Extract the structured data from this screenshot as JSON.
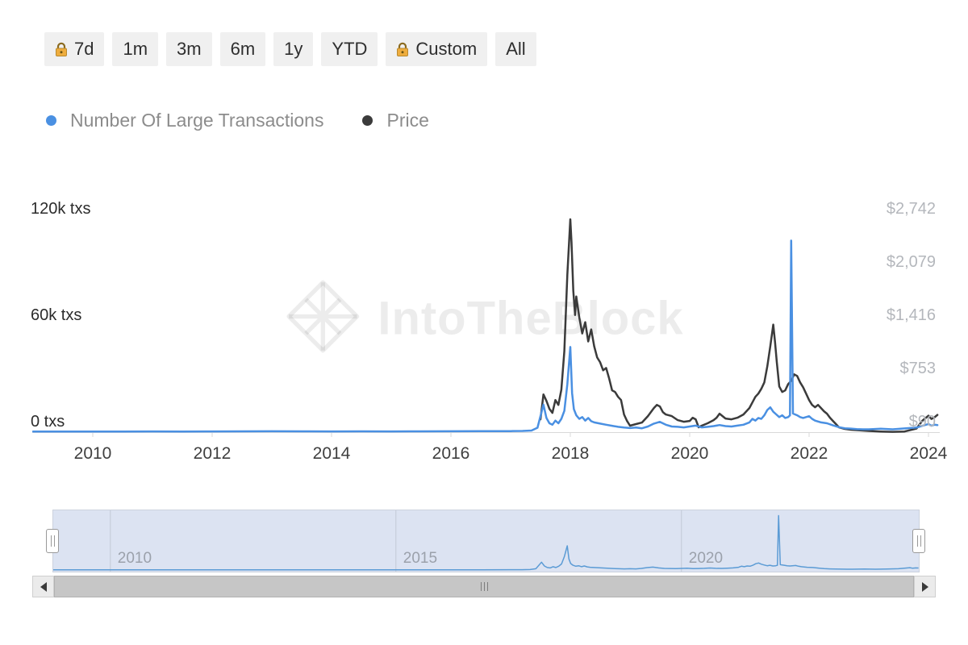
{
  "toolbar": {
    "buttons": [
      {
        "label": "7d",
        "locked": true
      },
      {
        "label": "1m",
        "locked": false
      },
      {
        "label": "3m",
        "locked": false
      },
      {
        "label": "6m",
        "locked": false
      },
      {
        "label": "1y",
        "locked": false
      },
      {
        "label": "YTD",
        "locked": false
      },
      {
        "label": "Custom",
        "locked": true
      },
      {
        "label": "All",
        "locked": false
      }
    ]
  },
  "watermark": {
    "text": "IntoTheBlock"
  },
  "chart_data": {
    "type": "line",
    "title": "",
    "x_axis": {
      "range": [
        2009,
        2024.15
      ],
      "ticks": [
        2010,
        2012,
        2014,
        2016,
        2018,
        2020,
        2022,
        2024
      ],
      "tick_labels": [
        "2010",
        "2012",
        "2014",
        "2016",
        "2018",
        "2020",
        "2022",
        "2024"
      ]
    },
    "y_axis_left": {
      "labels": [
        "120k txs",
        "60k txs",
        "0 txs"
      ],
      "values": [
        120000,
        60000,
        0
      ],
      "range": [
        0,
        120000
      ]
    },
    "y_axis_right": {
      "labels": [
        "$2,742",
        "$2,079",
        "$1,416",
        "$753",
        "$90"
      ],
      "values": [
        2742,
        2079,
        1416,
        753,
        90
      ],
      "range": [
        90,
        2742
      ]
    },
    "legend_position": "top-left",
    "grid": false,
    "series": [
      {
        "name": "Number Of Large Transactions",
        "color": "#4a90e2",
        "y_axis": "left",
        "points": [
          [
            2009.0,
            300
          ],
          [
            2009.5,
            300
          ],
          [
            2010.0,
            350
          ],
          [
            2010.5,
            300
          ],
          [
            2011.0,
            400
          ],
          [
            2011.5,
            350
          ],
          [
            2012.0,
            400
          ],
          [
            2012.5,
            450
          ],
          [
            2013.0,
            500
          ],
          [
            2013.5,
            450
          ],
          [
            2014.0,
            400
          ],
          [
            2014.5,
            450
          ],
          [
            2015.0,
            400
          ],
          [
            2015.5,
            450
          ],
          [
            2016.0,
            500
          ],
          [
            2016.5,
            550
          ],
          [
            2017.0,
            600
          ],
          [
            2017.2,
            700
          ],
          [
            2017.35,
            900
          ],
          [
            2017.45,
            2500
          ],
          [
            2017.5,
            9000
          ],
          [
            2017.55,
            15500
          ],
          [
            2017.6,
            8000
          ],
          [
            2017.65,
            5000
          ],
          [
            2017.7,
            4200
          ],
          [
            2017.75,
            6500
          ],
          [
            2017.8,
            5000
          ],
          [
            2017.85,
            7500
          ],
          [
            2017.9,
            12000
          ],
          [
            2017.95,
            27000
          ],
          [
            2018.0,
            48000
          ],
          [
            2018.03,
            22000
          ],
          [
            2018.06,
            13000
          ],
          [
            2018.1,
            9500
          ],
          [
            2018.15,
            7500
          ],
          [
            2018.2,
            8500
          ],
          [
            2018.25,
            6500
          ],
          [
            2018.3,
            8000
          ],
          [
            2018.35,
            6200
          ],
          [
            2018.4,
            5500
          ],
          [
            2018.5,
            4800
          ],
          [
            2018.6,
            4200
          ],
          [
            2018.7,
            3600
          ],
          [
            2018.8,
            3000
          ],
          [
            2018.9,
            2600
          ],
          [
            2019.0,
            2300
          ],
          [
            2019.1,
            2600
          ],
          [
            2019.2,
            2200
          ],
          [
            2019.3,
            3200
          ],
          [
            2019.4,
            4800
          ],
          [
            2019.5,
            5800
          ],
          [
            2019.6,
            4200
          ],
          [
            2019.7,
            3200
          ],
          [
            2019.8,
            3000
          ],
          [
            2019.9,
            2700
          ],
          [
            2020.0,
            3200
          ],
          [
            2020.1,
            3700
          ],
          [
            2020.2,
            2700
          ],
          [
            2020.3,
            3000
          ],
          [
            2020.4,
            3400
          ],
          [
            2020.5,
            4000
          ],
          [
            2020.6,
            3400
          ],
          [
            2020.7,
            3200
          ],
          [
            2020.8,
            3700
          ],
          [
            2020.9,
            4200
          ],
          [
            2021.0,
            5500
          ],
          [
            2021.05,
            7500
          ],
          [
            2021.1,
            6500
          ],
          [
            2021.15,
            8000
          ],
          [
            2021.2,
            7500
          ],
          [
            2021.25,
            9500
          ],
          [
            2021.3,
            12500
          ],
          [
            2021.35,
            14000
          ],
          [
            2021.4,
            11500
          ],
          [
            2021.45,
            10000
          ],
          [
            2021.5,
            8500
          ],
          [
            2021.55,
            9500
          ],
          [
            2021.6,
            8000
          ],
          [
            2021.65,
            8500
          ],
          [
            2021.68,
            9500
          ],
          [
            2021.7,
            108000
          ],
          [
            2021.73,
            10500
          ],
          [
            2021.8,
            9500
          ],
          [
            2021.85,
            8500
          ],
          [
            2021.9,
            8000
          ],
          [
            2022.0,
            9000
          ],
          [
            2022.05,
            7500
          ],
          [
            2022.1,
            6500
          ],
          [
            2022.2,
            5500
          ],
          [
            2022.3,
            5000
          ],
          [
            2022.4,
            3800
          ],
          [
            2022.5,
            2800
          ],
          [
            2022.6,
            2200
          ],
          [
            2022.7,
            2000
          ],
          [
            2022.8,
            1700
          ],
          [
            2022.9,
            1600
          ],
          [
            2023.0,
            1600
          ],
          [
            2023.2,
            1900
          ],
          [
            2023.4,
            1600
          ],
          [
            2023.6,
            2100
          ],
          [
            2023.8,
            2600
          ],
          [
            2023.9,
            3600
          ],
          [
            2024.0,
            4600
          ],
          [
            2024.05,
            3600
          ],
          [
            2024.1,
            4200
          ],
          [
            2024.15,
            4000
          ]
        ]
      },
      {
        "name": "Price",
        "color": "#3b3b3b",
        "y_axis": "right",
        "points": [
          [
            2017.5,
            250
          ],
          [
            2017.55,
            560
          ],
          [
            2017.6,
            480
          ],
          [
            2017.65,
            380
          ],
          [
            2017.7,
            330
          ],
          [
            2017.75,
            490
          ],
          [
            2017.8,
            430
          ],
          [
            2017.85,
            620
          ],
          [
            2017.9,
            1100
          ],
          [
            2017.95,
            2050
          ],
          [
            2018.0,
            2742
          ],
          [
            2018.02,
            2450
          ],
          [
            2018.05,
            1850
          ],
          [
            2018.08,
            1550
          ],
          [
            2018.1,
            1780
          ],
          [
            2018.15,
            1520
          ],
          [
            2018.2,
            1320
          ],
          [
            2018.25,
            1460
          ],
          [
            2018.3,
            1220
          ],
          [
            2018.35,
            1370
          ],
          [
            2018.4,
            1160
          ],
          [
            2018.45,
            1020
          ],
          [
            2018.5,
            960
          ],
          [
            2018.55,
            860
          ],
          [
            2018.6,
            890
          ],
          [
            2018.65,
            760
          ],
          [
            2018.7,
            610
          ],
          [
            2018.75,
            590
          ],
          [
            2018.8,
            530
          ],
          [
            2018.85,
            490
          ],
          [
            2018.9,
            310
          ],
          [
            2018.95,
            230
          ],
          [
            2019.0,
            170
          ],
          [
            2019.1,
            190
          ],
          [
            2019.2,
            210
          ],
          [
            2019.3,
            290
          ],
          [
            2019.4,
            390
          ],
          [
            2019.45,
            430
          ],
          [
            2019.5,
            410
          ],
          [
            2019.55,
            340
          ],
          [
            2019.6,
            310
          ],
          [
            2019.7,
            290
          ],
          [
            2019.8,
            240
          ],
          [
            2019.9,
            220
          ],
          [
            2020.0,
            230
          ],
          [
            2020.05,
            270
          ],
          [
            2020.1,
            250
          ],
          [
            2020.15,
            150
          ],
          [
            2020.2,
            170
          ],
          [
            2020.3,
            200
          ],
          [
            2020.4,
            240
          ],
          [
            2020.45,
            270
          ],
          [
            2020.5,
            320
          ],
          [
            2020.55,
            290
          ],
          [
            2020.6,
            260
          ],
          [
            2020.7,
            250
          ],
          [
            2020.8,
            270
          ],
          [
            2020.9,
            310
          ],
          [
            2021.0,
            390
          ],
          [
            2021.05,
            460
          ],
          [
            2021.1,
            530
          ],
          [
            2021.15,
            570
          ],
          [
            2021.2,
            630
          ],
          [
            2021.25,
            710
          ],
          [
            2021.3,
            910
          ],
          [
            2021.35,
            1160
          ],
          [
            2021.4,
            1430
          ],
          [
            2021.43,
            1210
          ],
          [
            2021.46,
            960
          ],
          [
            2021.5,
            660
          ],
          [
            2021.55,
            590
          ],
          [
            2021.6,
            610
          ],
          [
            2021.65,
            690
          ],
          [
            2021.7,
            730
          ],
          [
            2021.75,
            810
          ],
          [
            2021.8,
            790
          ],
          [
            2021.85,
            710
          ],
          [
            2021.9,
            650
          ],
          [
            2021.95,
            570
          ],
          [
            2022.0,
            490
          ],
          [
            2022.05,
            430
          ],
          [
            2022.1,
            400
          ],
          [
            2022.15,
            430
          ],
          [
            2022.2,
            390
          ],
          [
            2022.25,
            350
          ],
          [
            2022.3,
            320
          ],
          [
            2022.35,
            270
          ],
          [
            2022.4,
            230
          ],
          [
            2022.45,
            190
          ],
          [
            2022.5,
            150
          ],
          [
            2022.6,
            130
          ],
          [
            2022.7,
            120
          ],
          [
            2022.8,
            115
          ],
          [
            2022.9,
            110
          ],
          [
            2023.0,
            105
          ],
          [
            2023.2,
            98
          ],
          [
            2023.4,
            94
          ],
          [
            2023.6,
            98
          ],
          [
            2023.8,
            135
          ],
          [
            2023.85,
            185
          ],
          [
            2023.9,
            235
          ],
          [
            2023.95,
            265
          ],
          [
            2024.0,
            295
          ],
          [
            2024.05,
            255
          ],
          [
            2024.1,
            275
          ],
          [
            2024.15,
            305
          ]
        ]
      }
    ],
    "navigator": {
      "ticks": [
        2010,
        2015,
        2020
      ],
      "tick_labels": [
        "2010",
        "2015",
        "2020"
      ],
      "selection": "all",
      "background": "#dce3f2",
      "line_color": "#5b9bd5"
    }
  }
}
